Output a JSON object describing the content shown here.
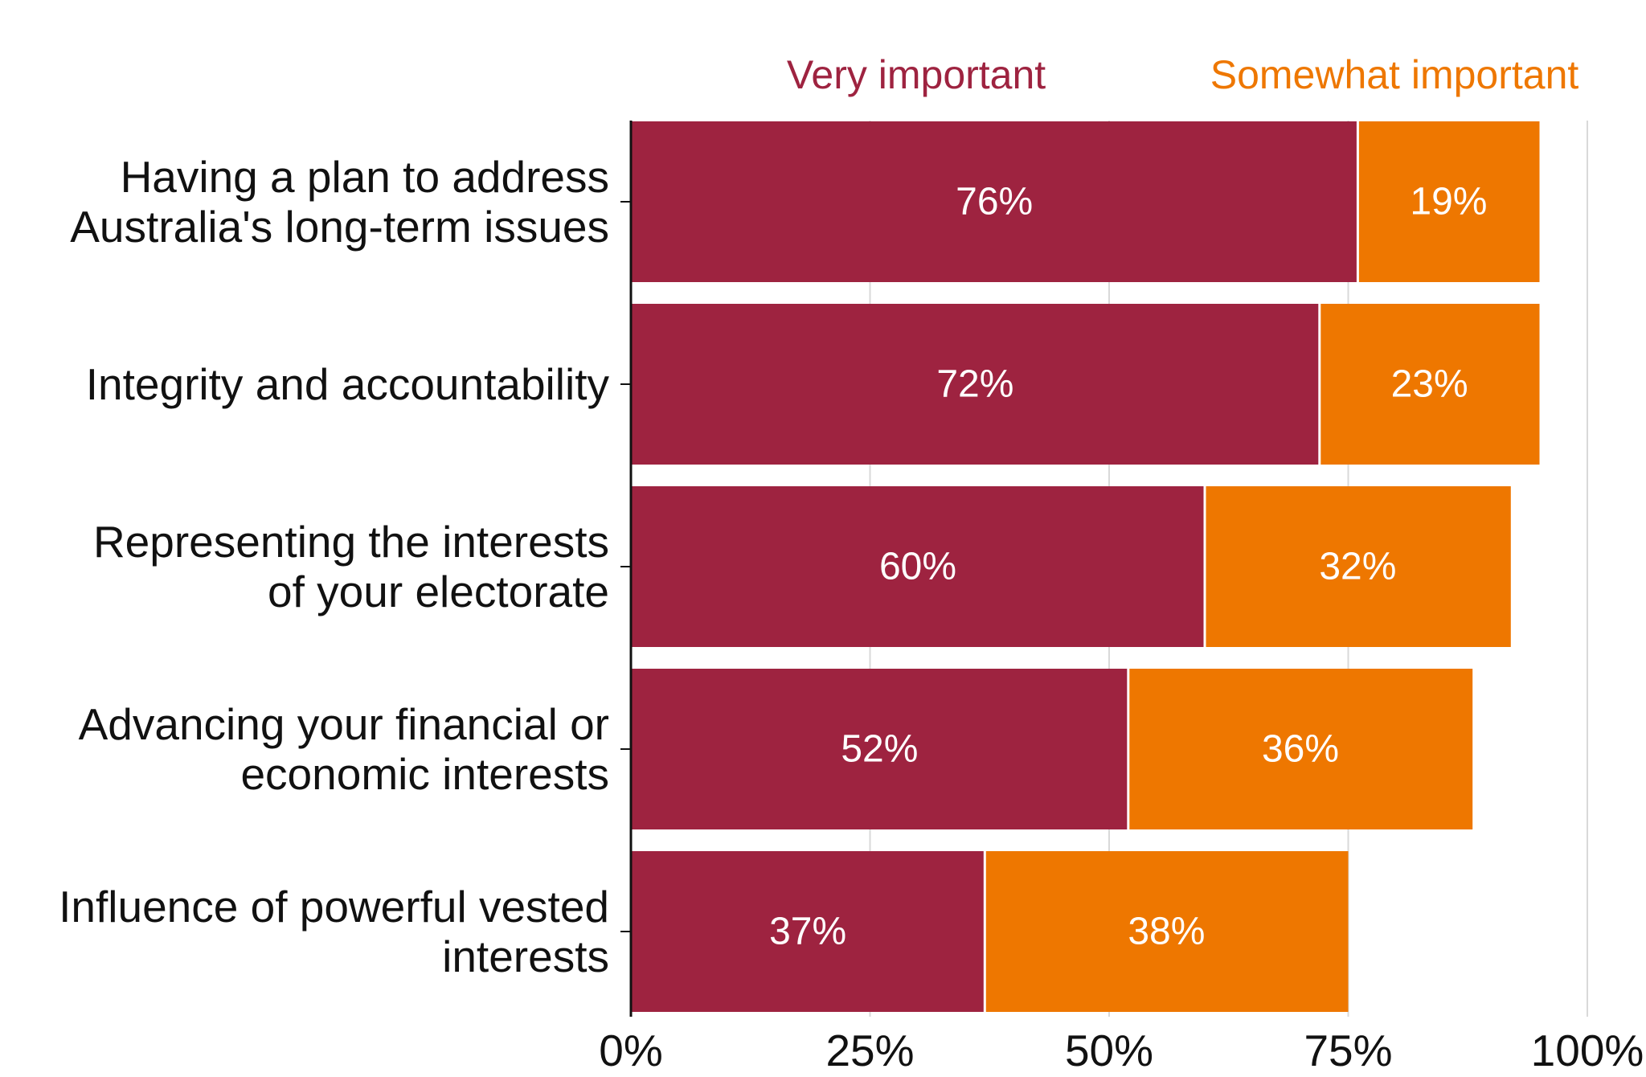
{
  "chart_data": {
    "type": "bar",
    "orientation": "horizontal",
    "stacked": true,
    "categories": [
      [
        "Having a plan to address",
        "Australia's long-term issues"
      ],
      [
        "Integrity and accountability"
      ],
      [
        "Representing the interests",
        "of your electorate"
      ],
      [
        "Advancing your financial or",
        "economic interests"
      ],
      [
        "Influence of powerful vested",
        "interests"
      ]
    ],
    "series": [
      {
        "name": "Very important",
        "color": "#9e2340",
        "values": [
          76,
          72,
          60,
          52,
          37
        ],
        "labels": [
          "76%",
          "72%",
          "60%",
          "52%",
          "37%"
        ]
      },
      {
        "name": "Somewhat important",
        "color": "#ee7700",
        "values": [
          19,
          23,
          32,
          36,
          38
        ],
        "labels": [
          "19%",
          "23%",
          "32%",
          "36%",
          "38%"
        ]
      }
    ],
    "xlim": [
      0,
      100
    ],
    "xticks": [
      0,
      25,
      50,
      75,
      100
    ],
    "xtick_labels": [
      "0%",
      "25%",
      "50%",
      "75%",
      "100%"
    ],
    "grid": true,
    "legend_position": "top"
  }
}
